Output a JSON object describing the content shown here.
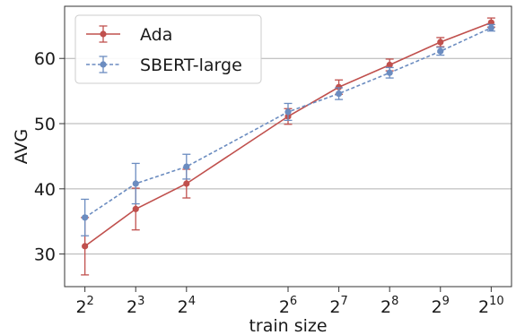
{
  "chart_data": {
    "type": "line",
    "xlabel": "train size",
    "ylabel": "AVG",
    "x_scale": "log2",
    "x": [
      2,
      3,
      4,
      6,
      7,
      8,
      9,
      10
    ],
    "x_tick_labels": [
      {
        "base": "2",
        "exp": "2"
      },
      {
        "base": "2",
        "exp": "3"
      },
      {
        "base": "2",
        "exp": "4"
      },
      {
        "base": "2",
        "exp": "6"
      },
      {
        "base": "2",
        "exp": "7"
      },
      {
        "base": "2",
        "exp": "8"
      },
      {
        "base": "2",
        "exp": "9"
      },
      {
        "base": "2",
        "exp": "10"
      }
    ],
    "y_ticks": [
      30,
      40,
      50,
      60
    ],
    "ylim": [
      25,
      68
    ],
    "grid": "horizontal",
    "legend_position": "top-left",
    "series": [
      {
        "name": "Ada",
        "color": "#c0504d",
        "line_style": "solid",
        "values": [
          31.2,
          36.9,
          40.8,
          51.1,
          55.6,
          59.0,
          62.5,
          65.5
        ],
        "err": [
          4.4,
          3.2,
          2.2,
          1.2,
          1.1,
          0.9,
          0.7,
          0.7
        ]
      },
      {
        "name": "SBERT-large",
        "color": "#6b8cc0",
        "line_style": "dashed",
        "values": [
          35.6,
          40.8,
          43.4,
          51.8,
          54.6,
          57.8,
          61.1,
          64.7
        ],
        "err": [
          2.8,
          3.1,
          1.9,
          1.3,
          0.9,
          0.8,
          0.6,
          0.5
        ]
      }
    ]
  }
}
